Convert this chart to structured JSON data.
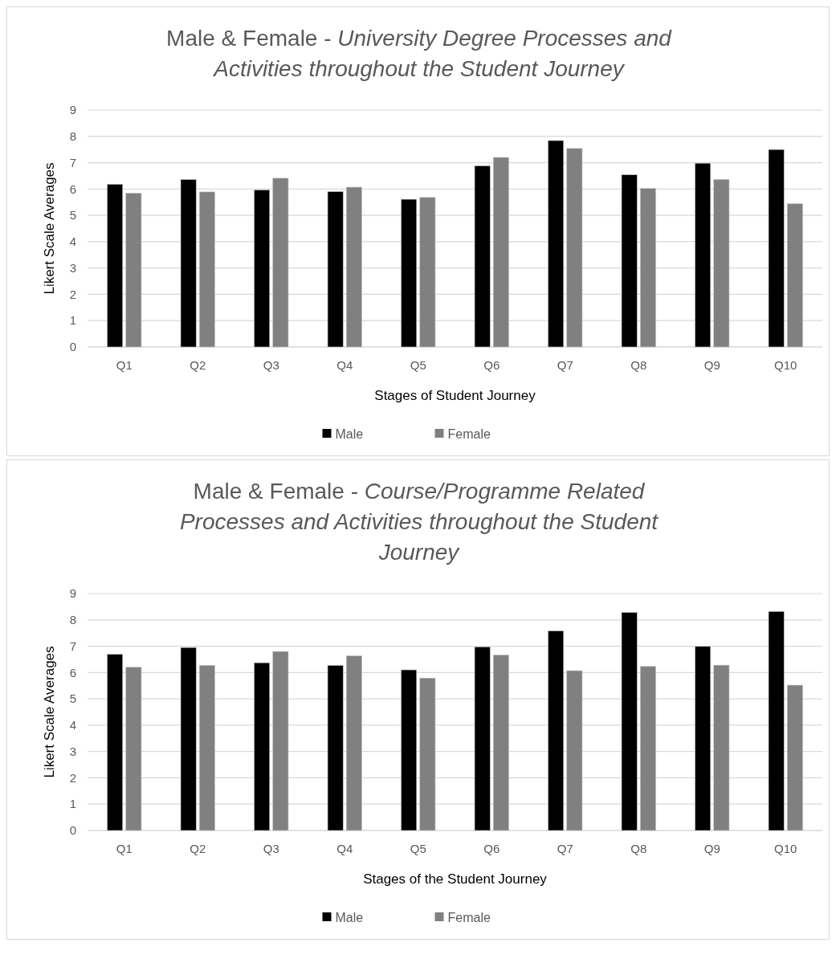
{
  "chart_data": [
    {
      "type": "bar",
      "title": "Male & Female - University Degree Processes and Activities throughout the Student Journey",
      "xlabel": "Stages of Student Journey",
      "ylabel": "Likert Scale Averages",
      "categories": [
        "Q1",
        "Q2",
        "Q3",
        "Q4",
        "Q5",
        "Q6",
        "Q7",
        "Q8",
        "Q9",
        "Q10"
      ],
      "series": [
        {
          "name": "Male",
          "color": "#000000",
          "values": [
            6.18,
            6.36,
            5.96,
            5.9,
            5.61,
            6.88,
            7.84,
            6.54,
            6.98,
            7.5
          ]
        },
        {
          "name": "Female",
          "color": "#808080",
          "values": [
            5.84,
            5.89,
            6.41,
            6.07,
            5.68,
            7.2,
            7.54,
            6.02,
            6.36,
            5.44
          ]
        }
      ],
      "ylim": [
        0,
        9
      ],
      "yticks": [
        0,
        1,
        2,
        3,
        4,
        5,
        6,
        7,
        8,
        9
      ],
      "grid": "y",
      "legend": "bottom"
    },
    {
      "type": "bar",
      "title": "Male & Female - Course/Programme Related Processes and Activities throughout the Student Journey",
      "xlabel": "Stages of the Student Journey",
      "ylabel": "Likert Scale Averages",
      "categories": [
        "Q1",
        "Q2",
        "Q3",
        "Q4",
        "Q5",
        "Q6",
        "Q7",
        "Q8",
        "Q9",
        "Q10"
      ],
      "series": [
        {
          "name": "Male",
          "color": "#000000",
          "values": [
            6.69,
            6.95,
            6.37,
            6.27,
            6.1,
            6.97,
            7.58,
            8.28,
            6.99,
            8.32
          ]
        },
        {
          "name": "Female",
          "color": "#808080",
          "values": [
            6.2,
            6.27,
            6.8,
            6.63,
            5.79,
            6.66,
            6.07,
            6.23,
            6.28,
            5.52
          ]
        }
      ],
      "ylim": [
        0,
        9
      ],
      "yticks": [
        0,
        1,
        2,
        3,
        4,
        5,
        6,
        7,
        8,
        9
      ],
      "grid": "y",
      "legend": "bottom"
    }
  ]
}
